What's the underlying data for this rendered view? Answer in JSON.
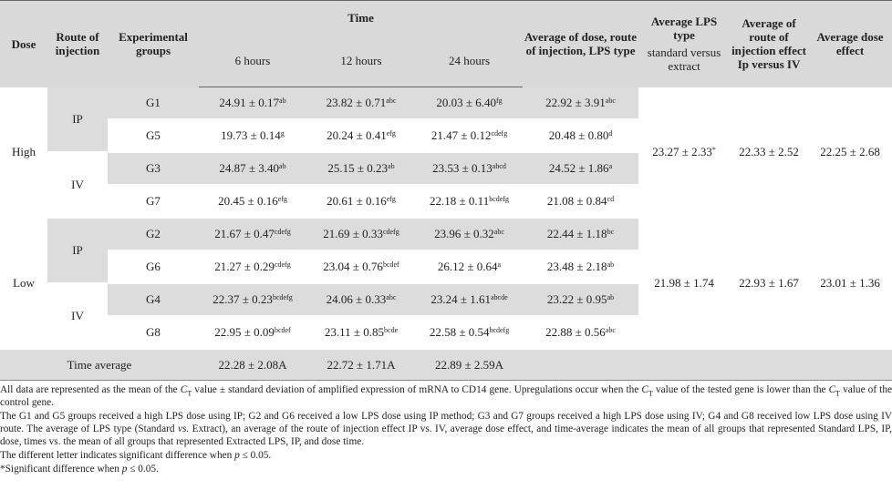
{
  "table": {
    "header": {
      "dose": "Dose",
      "route": "Route of injection",
      "groups": "Experimental groups",
      "time": "Time",
      "hours": [
        "6 hours",
        "12 hours",
        "24 hours"
      ],
      "avg_dose_route_lps": "Average of dose, route of injection, LPS type",
      "avg_lps": "Average LPS type",
      "avg_lps_sub": "standard versus extract",
      "avg_route": "Average of route of injection effect Ip versus IV",
      "avg_dose": "Average dose effect"
    },
    "doses": [
      {
        "dose": "High",
        "lps_avg": {
          "text": "23.27 ± 2.33",
          "sup": "*"
        },
        "route_avg": "22.33 ± 2.52",
        "dose_avg": "22.25 ± 2.68",
        "routes": [
          {
            "route": "IP",
            "groups": [
              {
                "group": "G1",
                "cells": [
                  {
                    "text": "24.91 ± 0.17",
                    "sup": "ab"
                  },
                  {
                    "text": "23.82 ± 0.71",
                    "sup": "abc"
                  },
                  {
                    "text": "20.03 ± 6.40",
                    "sup": "fg"
                  },
                  {
                    "text": "22.92 ± 3.91",
                    "sup": "abc"
                  }
                ]
              },
              {
                "group": "G5",
                "cells": [
                  {
                    "text": "19.73 ± 0.14",
                    "sup": "g"
                  },
                  {
                    "text": "20.24 ± 0.41",
                    "sup": "efg"
                  },
                  {
                    "text": "21.47 ± 0.12",
                    "sup": "cdefg"
                  },
                  {
                    "text": "20.48 ± 0.80",
                    "sup": "d"
                  }
                ]
              }
            ]
          },
          {
            "route": "IV",
            "groups": [
              {
                "group": "G3",
                "cells": [
                  {
                    "text": "24.87 ± 3.40",
                    "sup": "ab"
                  },
                  {
                    "text": "25.15 ± 0.23",
                    "sup": "ab"
                  },
                  {
                    "text": "23.53 ± 0.13",
                    "sup": "abcd"
                  },
                  {
                    "text": "24.52 ± 1.86",
                    "sup": "a"
                  }
                ]
              },
              {
                "group": "G7",
                "cells": [
                  {
                    "text": "20.45 ± 0.16",
                    "sup": "efg"
                  },
                  {
                    "text": "20.61 ± 0.16",
                    "sup": "efg"
                  },
                  {
                    "text": "22.18 ± 0.11",
                    "sup": "bcdefg"
                  },
                  {
                    "text": "21.08 ± 0.84",
                    "sup": "cd"
                  }
                ]
              }
            ]
          }
        ]
      },
      {
        "dose": "Low",
        "lps_avg": {
          "text": "21.98 ± 1.74"
        },
        "route_avg": "22.93 ± 1.67",
        "dose_avg": "23.01 ± 1.36",
        "routes": [
          {
            "route": "IP",
            "groups": [
              {
                "group": "G2",
                "cells": [
                  {
                    "text": "21.67 ± 0.47",
                    "sup": "cdefg"
                  },
                  {
                    "text": "21.69 ± 0.33",
                    "sup": "cdefg"
                  },
                  {
                    "text": "23.96 ± 0.32",
                    "sup": "abc"
                  },
                  {
                    "text": "22.44 ± 1.18",
                    "sup": "bc"
                  }
                ]
              },
              {
                "group": "G6",
                "cells": [
                  {
                    "text": "21.27 ± 0.29",
                    "sup": "cdefg"
                  },
                  {
                    "text": "23.04 ± 0.76",
                    "sup": "bcdef"
                  },
                  {
                    "text": "26.12 ± 0.64",
                    "sup": "a"
                  },
                  {
                    "text": "23.48 ± 2.18",
                    "sup": "ab"
                  }
                ]
              }
            ]
          },
          {
            "route": "IV",
            "groups": [
              {
                "group": "G4",
                "cells": [
                  {
                    "text": "22.37 ± 0.23",
                    "sup": "bcdefg"
                  },
                  {
                    "text": "24.06 ± 0.33",
                    "sup": "abc"
                  },
                  {
                    "text": "23.24 ± 1.61",
                    "sup": "abcde"
                  },
                  {
                    "text": "23.22 ± 0.95",
                    "sup": "ab"
                  }
                ]
              },
              {
                "group": "G8",
                "cells": [
                  {
                    "text": "22.95 ± 0.09",
                    "sup": "bcdef"
                  },
                  {
                    "text": "23.11 ± 0.85",
                    "sup": "bcde"
                  },
                  {
                    "text": "22.58 ± 0.54",
                    "sup": "bcdefg"
                  },
                  {
                    "text": "22.88 ± 0.56",
                    "sup": "abc"
                  }
                ]
              }
            ]
          }
        ]
      }
    ],
    "time_average": {
      "label": "Time average",
      "values": [
        "22.28 ± 2.08A",
        "22.72 ± 1.71A",
        "22.89 ± 2.59A"
      ]
    }
  },
  "footnotes": [
    [
      {
        "text": "All data are represented as the mean of the "
      },
      {
        "text": "C",
        "style": "italic"
      },
      {
        "text": "T",
        "style": "sub"
      },
      {
        "text": " value ± standard deviation of amplified expression of mRNA to CD14 gene. Upregulations occur when the "
      },
      {
        "text": "C",
        "style": "italic"
      },
      {
        "text": "T",
        "style": "sub"
      },
      {
        "text": " value of the tested gene is lower than the "
      },
      {
        "text": "C",
        "style": "italic"
      },
      {
        "text": "T",
        "style": "sub"
      },
      {
        "text": " value of the control gene."
      }
    ],
    [
      {
        "text": "The G1 and G5 groups received a high LPS dose using IP; G2 and G6 received a low LPS dose using IP method; G3 and G7 groups received a high LPS dose using IV; G4 and G8 received low LPS dose using IV route. The average of LPS type (Standard "
      },
      {
        "text": "vs.",
        "style": "italic"
      },
      {
        "text": " Extract), an average of the route of injection effect IP vs. IV, average dose effect, and time-average indicates the mean of all groups that represented Standard LPS, IP, dose, times vs. the mean of all groups that represented Extracted LPS, IP, and dose time."
      }
    ],
    [
      {
        "text": "The different letter indicates significant difference when "
      },
      {
        "text": "p",
        "style": "italic"
      },
      {
        "text": " ≤ 0.05."
      }
    ],
    [
      {
        "text": "*Significant difference when "
      },
      {
        "text": "p",
        "style": "italic"
      },
      {
        "text": " ≤ 0.05."
      }
    ]
  ]
}
